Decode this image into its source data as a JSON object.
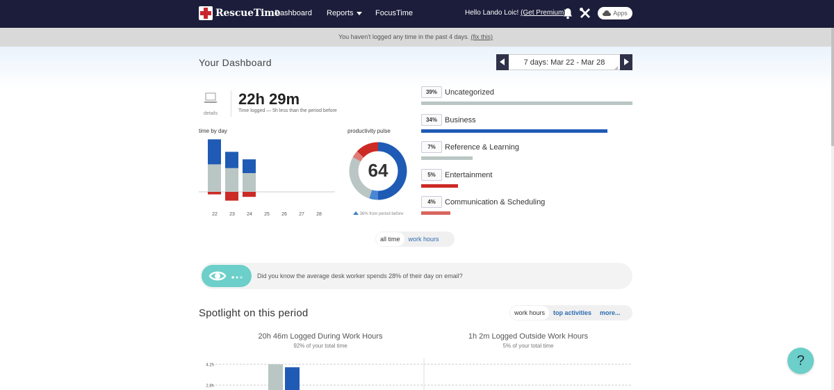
{
  "nav": {
    "brand": "RescueTime",
    "dashboard": "Dashboard",
    "reports": "Reports",
    "focustime": "FocusTime",
    "hello": "Hello Lando Loic! ",
    "premium": "(Get Premium)",
    "apps": "Apps"
  },
  "notice": {
    "text": "You haven't logged any time in the past 4 days. ",
    "link": "(fix this)"
  },
  "dashboard": {
    "title": "Your  Dashboard",
    "date_range": "7 days: Mar 22 - Mar 28"
  },
  "summary": {
    "details": "details",
    "total": "22h 29m",
    "subtitle": "Time logged — 5h less than the period before"
  },
  "time_by_day": {
    "label": "time by day",
    "days": [
      "22",
      "23",
      "24",
      "25",
      "26",
      "27",
      "28"
    ]
  },
  "pulse": {
    "label": "productivity pulse",
    "value": "64",
    "change": "36% from period before"
  },
  "categories": [
    {
      "pct": "39%",
      "name": "Uncategorized",
      "value": 39,
      "color": "#b9c6c4"
    },
    {
      "pct": "34%",
      "name": "Business",
      "value": 34,
      "color": "#1f5bb5"
    },
    {
      "pct": "7%",
      "name": "Reference & Learning",
      "value": 7,
      "color": "#b9c6c4"
    },
    {
      "pct": "5%",
      "name": "Entertainment",
      "value": 5,
      "color": "#cc2a25"
    },
    {
      "pct": "4%",
      "name": "Communication & Scheduling",
      "value": 4,
      "color": "#d9665f"
    }
  ],
  "toggle": {
    "all": "all time",
    "work": "work hours"
  },
  "tip": {
    "text": "Did you know the average desk worker spends 28% of their day on email?"
  },
  "spotlight": {
    "title": "Spotlight on this period",
    "tabs": [
      "work hours",
      "top activities",
      "more..."
    ],
    "left_title": "20h 46m Logged During Work Hours",
    "left_sub": "92% of your total time",
    "right_title": "1h 2m Logged Outside Work Hours",
    "right_sub": "5% of your total time"
  },
  "help": "?",
  "chart_data": [
    {
      "type": "bar",
      "title": "time by day",
      "categories": [
        "22",
        "23",
        "24",
        "25",
        "26",
        "27",
        "28"
      ],
      "series": [
        {
          "values": [
            2.0,
            1.3,
            1.1,
            0,
            0,
            0,
            0
          ],
          "color": "#1f5bb5"
        },
        {
          "values": [
            2.2,
            1.9,
            1.5,
            0,
            0,
            0,
            0
          ],
          "color": "#b9c6c4"
        },
        {
          "values": [
            -0.2,
            -0.7,
            -0.4,
            0,
            0,
            0,
            0
          ],
          "color": "#cc2a25"
        }
      ]
    },
    {
      "type": "pie",
      "title": "productivity pulse",
      "slices": [
        {
          "value": 50,
          "color": "#1f5bb5"
        },
        {
          "value": 5,
          "color": "#4a86d4"
        },
        {
          "value": 28,
          "color": "#b9c6c4"
        },
        {
          "value": 4,
          "color": "#e07a76"
        },
        {
          "value": 13,
          "color": "#cc2a25"
        }
      ]
    },
    {
      "type": "bar",
      "title": "Spotlight",
      "y_ticks": [
        "4.2h",
        "2.8h"
      ],
      "series": [
        {
          "values": [
            4.2
          ],
          "color": "#b9c6c4"
        },
        {
          "values": [
            4.0
          ],
          "color": "#1f5bb5"
        }
      ]
    }
  ]
}
